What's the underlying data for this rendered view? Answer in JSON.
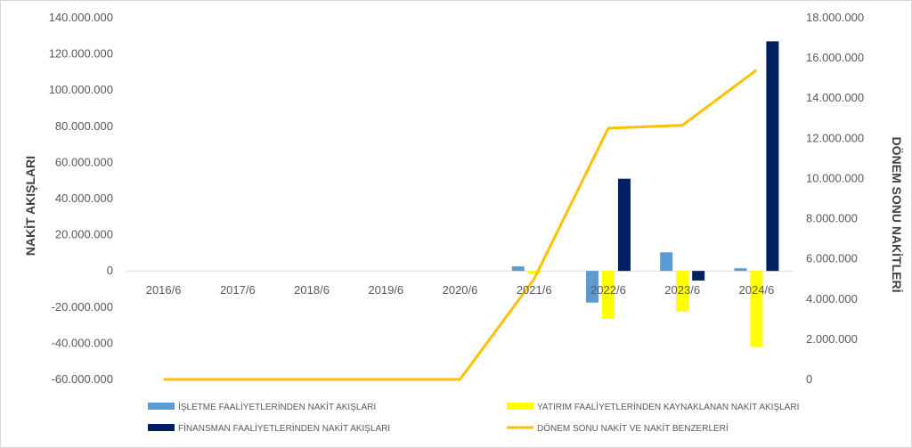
{
  "chart_data": {
    "type": "bar",
    "categories": [
      "2016/6",
      "2017/6",
      "2018/6",
      "2019/6",
      "2020/6",
      "2021/6",
      "2022/6",
      "2023/6",
      "2024/6"
    ],
    "ylabel_left": "NAKİT AKIŞLARI",
    "ylabel_right": "DÖNEM SONU NAKİTLERİ",
    "ylim_left": [
      -60000000,
      140000000
    ],
    "ylim_right": [
      0,
      18000000
    ],
    "yticks_left": [
      "-60.000.000",
      "-40.000.000",
      "-20.000.000",
      "0",
      "20.000.000",
      "40.000.000",
      "60.000.000",
      "80.000.000",
      "100.000.000",
      "120.000.000",
      "140.000.000"
    ],
    "yticks_right": [
      "0",
      "2.000.000",
      "4.000.000",
      "6.000.000",
      "8.000.000",
      "10.000.000",
      "12.000.000",
      "14.000.000",
      "16.000.000",
      "18.000.000"
    ],
    "grid": false,
    "legend_position": "bottom",
    "series": [
      {
        "name": "İŞLETME FAALİYETLERİNDEN NAKİT AKIŞLARI",
        "kind": "bar",
        "axis": "left",
        "color": "#5b9bd5",
        "values": [
          0,
          0,
          0,
          0,
          0,
          2500000,
          -17500000,
          10300000,
          1500000
        ]
      },
      {
        "name": "YATIRIM FAALİYETLERİNDEN KAYNAKLANAN NAKİT AKIŞLARI",
        "kind": "bar",
        "axis": "left",
        "color": "#ffff00",
        "values": [
          0,
          0,
          0,
          0,
          0,
          -1500000,
          -26500000,
          -22500000,
          -42000000
        ]
      },
      {
        "name": "FİNANSMAN FAALİYETLERİNDEN NAKİT AKIŞLARI",
        "kind": "bar",
        "axis": "left",
        "color": "#002060",
        "values": [
          0,
          0,
          0,
          0,
          0,
          0,
          51000000,
          -5300000,
          127000000
        ]
      },
      {
        "name": "DÖNEM SONU NAKİT VE NAKİT BENZERLERİ",
        "kind": "line",
        "axis": "right",
        "color": "#ffc000",
        "values": [
          0,
          0,
          0,
          0,
          0,
          5000000,
          12500000,
          12650000,
          15400000
        ]
      }
    ]
  }
}
